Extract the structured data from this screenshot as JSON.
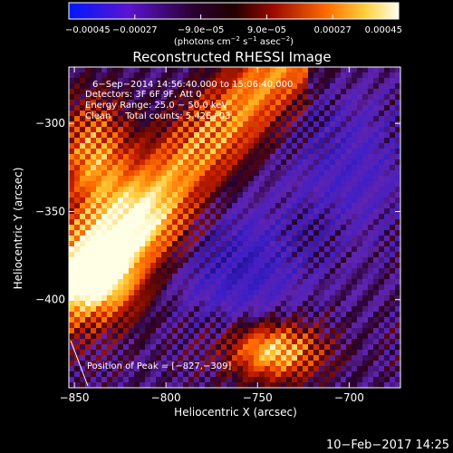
{
  "chart_data": {
    "type": "heatmap",
    "title": "Reconstructed RHESSI Image",
    "xlabel": "Heliocentric X (arcsec)",
    "ylabel": "Heliocentric Y (arcsec)",
    "xlim": [
      -853,
      -672
    ],
    "ylim": [
      -450,
      -268
    ],
    "x_ticks": [
      -850,
      -800,
      -750,
      -700
    ],
    "x_tick_labels": [
      "−850",
      "−800",
      "−750",
      "−700"
    ],
    "y_ticks": [
      -300,
      -350,
      -400
    ],
    "y_tick_labels": [
      "−300",
      "−350",
      "−400"
    ],
    "colorbar": {
      "min": -0.00045,
      "max": 0.00045,
      "ticks": [
        -0.00045,
        -0.00027,
        -9e-05,
        9e-05,
        0.00027,
        0.00045
      ],
      "tick_labels": [
        "−0.00045",
        "−0.00027",
        "−9.0e−05",
        "9.0e−05",
        "0.00027",
        "0.00045"
      ],
      "unit_main": "(photons cm",
      "unit_exp1": "−2",
      "unit_mid": " s",
      "unit_exp2": "−1",
      "unit_mid2": " asec",
      "unit_exp3": "−2",
      "unit_end": ")",
      "colors": [
        "#0018ff",
        "#6a10c8",
        "#2a0028",
        "#8a0800",
        "#ff5000",
        "#ffd040",
        "#ffffe8"
      ]
    },
    "annotations": [
      "6−Sep−2014 14:56:40.000 to 15:06:40.000",
      "Detectors: 3F 6F 9F, Att 0",
      "Energy Range: 25.0 − 50.0 keV",
      "Clean     Total counts: 5.42E+03"
    ],
    "peak_label": "Position of Peak = [−827,−309]",
    "peak": [
      -827,
      -309
    ],
    "grid": false
  },
  "timestamp": "10−Feb−2017 14:25"
}
